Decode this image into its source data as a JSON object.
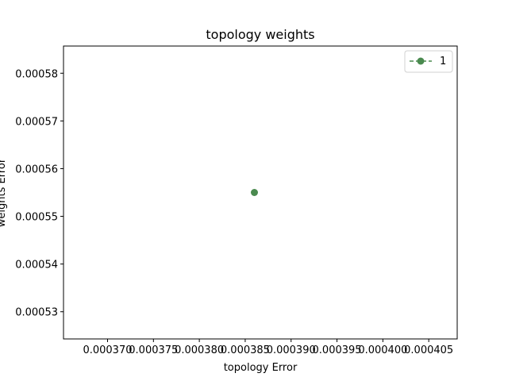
{
  "chart_data": {
    "type": "line",
    "title": "topology weights",
    "xlabel": "topology Error",
    "ylabel": "weights Error",
    "xlim": [
      0.0003652,
      0.0004081
    ],
    "ylim": [
      0.0005243,
      0.0005857
    ],
    "x_ticks": [
      0.00037,
      0.000375,
      0.00038,
      0.000385,
      0.00039,
      0.000395,
      0.0004,
      0.000405
    ],
    "x_tick_labels": [
      "0.000370",
      "0.000375",
      "0.000380",
      "0.000385",
      "0.000390",
      "0.000395",
      "0.000400",
      "0.000405"
    ],
    "y_ticks": [
      0.00053,
      0.00054,
      0.00055,
      0.00056,
      0.00057,
      0.00058
    ],
    "y_tick_labels": [
      "0.00053",
      "0.00054",
      "0.00055",
      "0.00056",
      "0.00057",
      "0.00058"
    ],
    "grid": false,
    "legend_position": "top-right",
    "series": [
      {
        "name": "1",
        "color": "#4a8a4f",
        "line_style": "dashed",
        "marker": "circle",
        "points": [
          {
            "x": 0.000386,
            "y": 0.000555
          }
        ]
      }
    ]
  }
}
